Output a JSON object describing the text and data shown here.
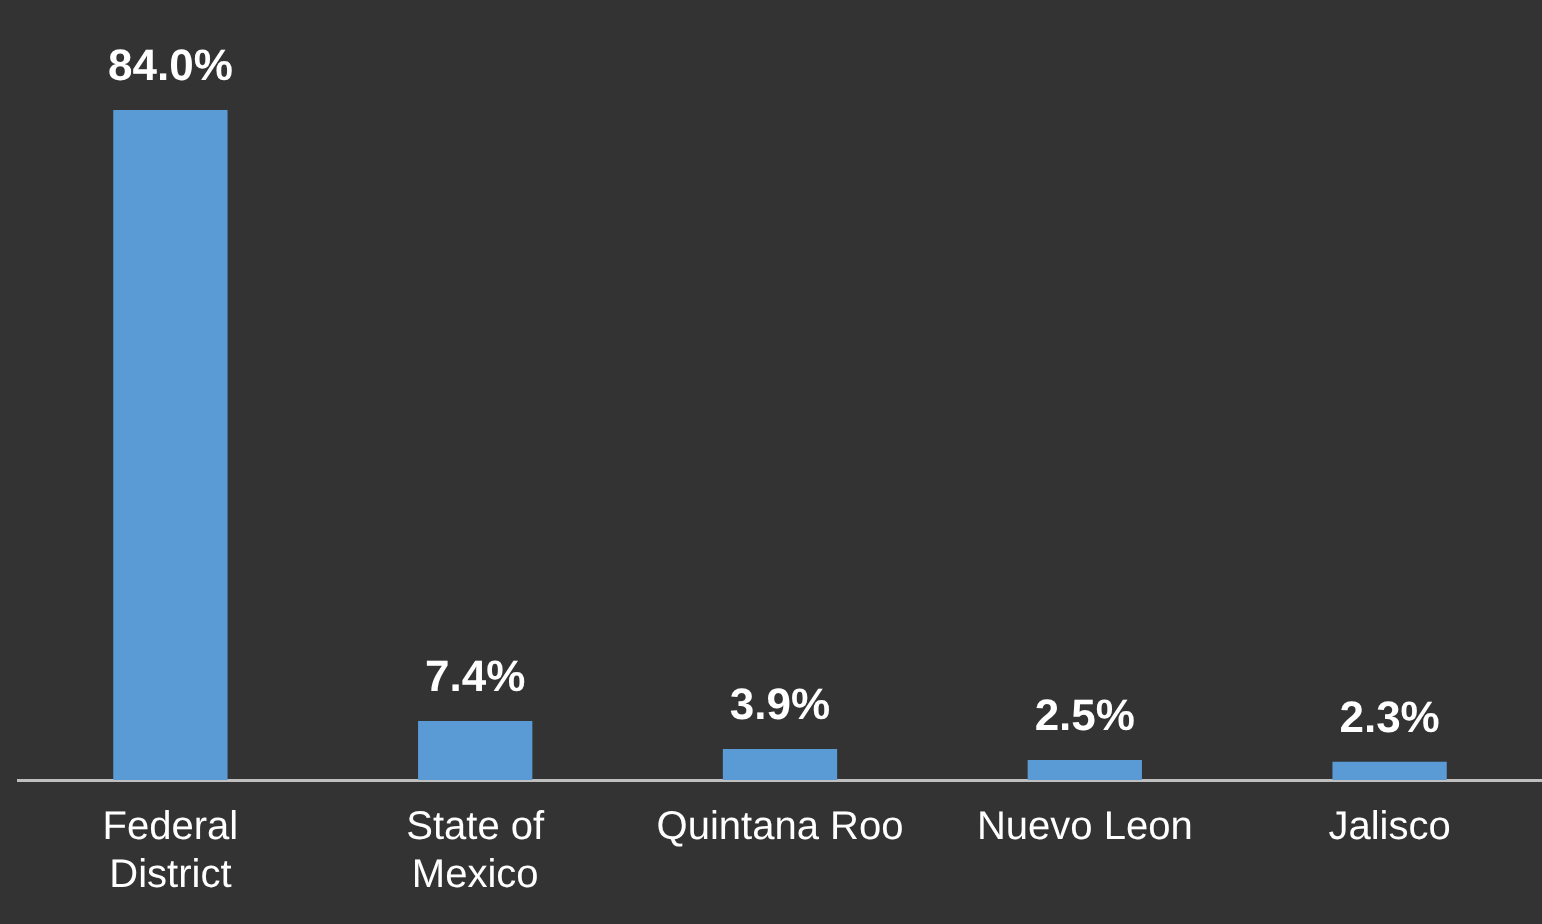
{
  "chart_data": {
    "type": "bar",
    "categories": [
      "Federal District",
      "State of Mexico",
      "Quintana Roo",
      "Nuevo Leon",
      "Jalisco"
    ],
    "values": [
      84.0,
      7.4,
      3.9,
      2.5,
      2.3
    ],
    "value_labels": [
      "84.0%",
      "7.4%",
      "3.9%",
      "2.5%",
      "2.3%"
    ],
    "color": "#5b9bd5",
    "grid": false,
    "legend": false
  }
}
